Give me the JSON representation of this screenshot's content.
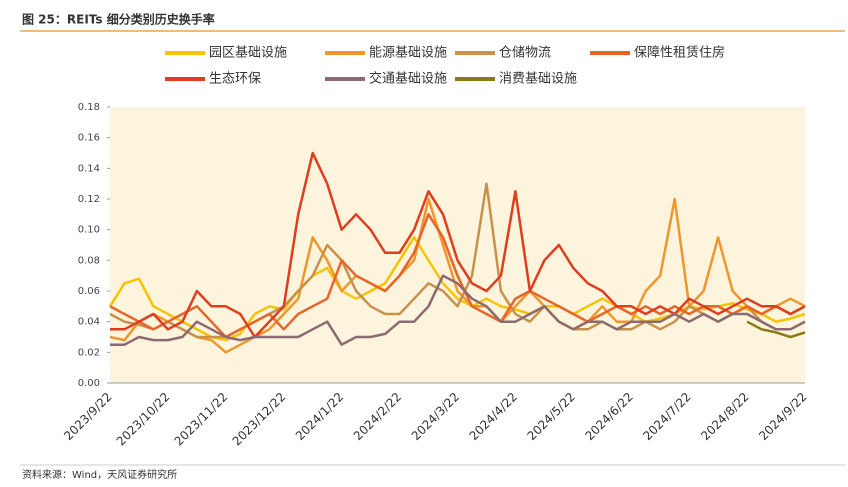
{
  "chart_data": {
    "type": "line",
    "title": "图 25：REITs 细分类别历史换手率",
    "source": "资料来源：Wind，天风证券研究所",
    "categories": [
      "2023/9/22",
      null,
      null,
      null,
      "2023/10/22",
      null,
      null,
      null,
      "2023/11/22",
      null,
      null,
      null,
      "2023/12/22",
      null,
      null,
      null,
      "2024/1/22",
      null,
      null,
      null,
      "2024/2/22",
      null,
      null,
      null,
      "2024/3/22",
      null,
      null,
      null,
      "2024/4/22",
      null,
      null,
      null,
      "2024/5/22",
      null,
      null,
      null,
      "2024/6/22",
      null,
      null,
      null,
      "2024/7/22",
      null,
      null,
      null,
      "2024/8/22",
      null,
      null,
      null,
      "2024/9/22"
    ],
    "ylim": [
      0,
      0.18
    ],
    "yticks": [
      {
        "value": 0,
        "label": "0.00"
      },
      0.02,
      0.04,
      0.06,
      0.08,
      {
        "value": 0.1,
        "label": "0.10"
      },
      0.12,
      0.14,
      0.16,
      0.18
    ],
    "series": [
      {
        "name": "园区基础设施",
        "color": "#f5c400",
        "values": [
          0.05,
          0.065,
          0.068,
          0.05,
          0.045,
          0.04,
          0.035,
          0.03,
          0.028,
          0.032,
          0.045,
          0.05,
          0.048,
          0.06,
          0.07,
          0.075,
          0.06,
          0.055,
          0.06,
          0.065,
          0.08,
          0.095,
          0.08,
          0.065,
          0.055,
          0.05,
          0.055,
          0.05,
          0.048,
          0.045,
          0.05,
          0.05,
          0.045,
          0.05,
          0.055,
          0.05,
          0.045,
          0.04,
          0.042,
          0.045,
          0.05,
          0.048,
          0.05,
          0.052,
          0.048,
          0.045,
          0.04,
          0.042,
          0.045
        ]
      },
      {
        "name": "能源基础设施",
        "color": "#f0962a",
        "values": [
          0.03,
          0.028,
          0.04,
          0.045,
          0.04,
          0.035,
          0.03,
          0.028,
          0.02,
          0.025,
          0.03,
          0.035,
          0.045,
          0.055,
          0.095,
          0.08,
          0.06,
          0.07,
          0.065,
          0.06,
          0.07,
          0.08,
          0.12,
          0.09,
          0.06,
          0.05,
          0.05,
          0.04,
          0.05,
          0.06,
          0.05,
          0.04,
          0.035,
          0.04,
          0.05,
          0.04,
          0.04,
          0.06,
          0.07,
          0.12,
          0.05,
          0.06,
          0.095,
          0.06,
          0.05,
          0.045,
          0.05,
          0.055,
          0.05
        ]
      },
      {
        "name": "仓储物流",
        "color": "#c8914a",
        "values": [
          0.045,
          0.04,
          0.038,
          0.035,
          0.04,
          0.035,
          0.03,
          0.03,
          0.03,
          0.035,
          0.04,
          0.045,
          0.05,
          0.06,
          0.07,
          0.09,
          0.08,
          0.06,
          0.05,
          0.045,
          0.045,
          0.055,
          0.065,
          0.06,
          0.05,
          0.07,
          0.13,
          0.06,
          0.045,
          0.04,
          0.05,
          0.04,
          0.035,
          0.035,
          0.04,
          0.035,
          0.035,
          0.04,
          0.035,
          0.04,
          0.05,
          0.045,
          0.04,
          0.045,
          0.05,
          0.04,
          0.035,
          0.035,
          0.04
        ]
      },
      {
        "name": "保障性租赁住房",
        "color": "#e8652a",
        "values": [
          0.05,
          0.045,
          0.04,
          0.035,
          0.04,
          0.045,
          0.05,
          0.04,
          0.03,
          0.035,
          0.04,
          0.045,
          0.035,
          0.045,
          0.05,
          0.055,
          0.08,
          0.07,
          0.065,
          0.06,
          0.07,
          0.085,
          0.11,
          0.095,
          0.07,
          0.05,
          0.045,
          0.04,
          0.055,
          0.06,
          0.055,
          0.05,
          0.045,
          0.04,
          0.045,
          0.05,
          0.045,
          0.05,
          0.045,
          0.05,
          0.045,
          0.05,
          0.05,
          0.045,
          0.05,
          0.045,
          0.05,
          0.045,
          0.05
        ]
      },
      {
        "name": "生态环保",
        "color": "#e03c1e",
        "values": [
          0.035,
          0.035,
          0.04,
          0.045,
          0.035,
          0.04,
          0.06,
          0.05,
          0.05,
          0.045,
          0.03,
          0.04,
          0.05,
          0.11,
          0.15,
          0.13,
          0.1,
          0.11,
          0.1,
          0.085,
          0.085,
          0.1,
          0.125,
          0.11,
          0.08,
          0.065,
          0.06,
          0.07,
          0.125,
          0.06,
          0.08,
          0.09,
          0.075,
          0.065,
          0.06,
          0.05,
          0.05,
          0.045,
          0.05,
          0.045,
          0.055,
          0.05,
          0.045,
          0.05,
          0.055,
          0.05,
          0.05,
          0.045,
          0.05
        ]
      },
      {
        "name": "交通基础设施",
        "color": "#8b6a72",
        "values": [
          0.025,
          0.025,
          0.03,
          0.028,
          0.028,
          0.03,
          0.04,
          0.035,
          0.03,
          0.028,
          0.03,
          0.03,
          0.03,
          0.03,
          0.035,
          0.04,
          0.025,
          0.03,
          0.03,
          0.032,
          0.04,
          0.04,
          0.05,
          0.07,
          0.065,
          0.055,
          0.05,
          0.04,
          0.04,
          0.045,
          0.05,
          0.04,
          0.035,
          0.04,
          0.04,
          0.035,
          0.04,
          0.04,
          0.04,
          0.045,
          0.04,
          0.045,
          0.04,
          0.045,
          0.045,
          0.04,
          0.035,
          0.035,
          0.04
        ]
      },
      {
        "name": "消费基础设施",
        "color": "#8a7a10",
        "values": [
          null,
          null,
          null,
          null,
          null,
          null,
          null,
          null,
          null,
          null,
          null,
          null,
          null,
          null,
          null,
          null,
          null,
          null,
          null,
          null,
          null,
          null,
          null,
          null,
          null,
          null,
          null,
          null,
          null,
          null,
          null,
          null,
          null,
          null,
          null,
          null,
          null,
          null,
          null,
          null,
          null,
          null,
          null,
          null,
          0.04,
          0.035,
          0.033,
          0.03,
          0.033
        ]
      }
    ]
  }
}
